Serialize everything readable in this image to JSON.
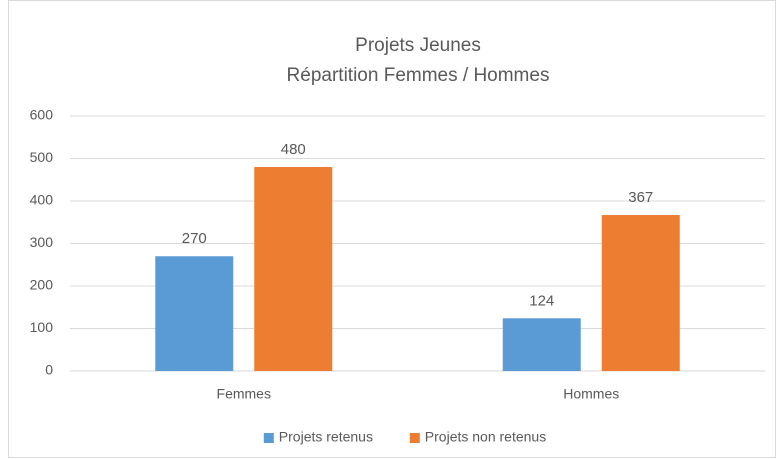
{
  "chart_data": {
    "type": "bar",
    "title": "Projets Jeunes",
    "subtitle": "Répartition Femmes / Hommes",
    "categories": [
      "Femmes",
      "Hommes"
    ],
    "series": [
      {
        "name": "Projets retenus",
        "color": "#5b9bd5",
        "values": [
          270,
          124
        ]
      },
      {
        "name": "Projets non retenus",
        "color": "#ed7d31",
        "values": [
          480,
          367
        ]
      }
    ],
    "ylim": [
      0,
      600
    ],
    "yticks": [
      0,
      100,
      200,
      300,
      400,
      500,
      600
    ],
    "grid": true,
    "legend": "bottom"
  }
}
